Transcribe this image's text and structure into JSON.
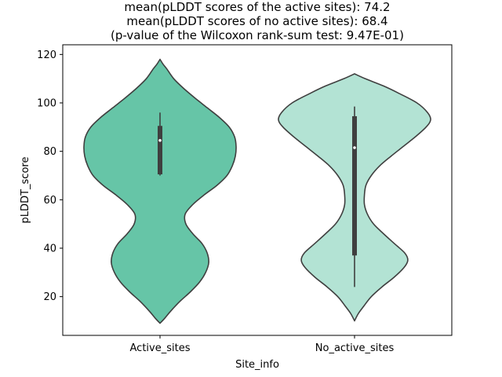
{
  "chart_data": {
    "type": "violin",
    "title_lines": [
      "mean(pLDDT scores of the active sites): 74.2",
      "mean(pLDDT scores of no active sites): 68.4",
      "(p-value of the Wilcoxon rank-sum test: 9.47E-01)"
    ],
    "xlabel": "Site_info",
    "ylabel": "pLDDT_score",
    "categories": [
      "Active_sites",
      "No_active_sites"
    ],
    "ylim": [
      4,
      124
    ],
    "yticks": [
      20,
      40,
      60,
      80,
      100,
      120
    ],
    "grid": false,
    "series": [
      {
        "category": "Active_sites",
        "color": "#66c5a7",
        "kde_min": 9,
        "kde_max": 118,
        "whisker_low": 70,
        "q1": 70.5,
        "median": 84.5,
        "q3": 90.5,
        "whisker_high": 96,
        "density_profile": [
          [
            9,
            0.0
          ],
          [
            11,
            0.06
          ],
          [
            14,
            0.14
          ],
          [
            18,
            0.26
          ],
          [
            22,
            0.4
          ],
          [
            26,
            0.52
          ],
          [
            30,
            0.6
          ],
          [
            34,
            0.64
          ],
          [
            38,
            0.62
          ],
          [
            42,
            0.55
          ],
          [
            46,
            0.43
          ],
          [
            50,
            0.34
          ],
          [
            54,
            0.33
          ],
          [
            58,
            0.43
          ],
          [
            62,
            0.58
          ],
          [
            66,
            0.75
          ],
          [
            70,
            0.88
          ],
          [
            74,
            0.95
          ],
          [
            78,
            0.99
          ],
          [
            82,
            1.0
          ],
          [
            86,
            0.98
          ],
          [
            90,
            0.91
          ],
          [
            94,
            0.78
          ],
          [
            98,
            0.62
          ],
          [
            102,
            0.46
          ],
          [
            106,
            0.31
          ],
          [
            110,
            0.18
          ],
          [
            114,
            0.09
          ],
          [
            116,
            0.04
          ],
          [
            118,
            0.0
          ]
        ]
      },
      {
        "category": "No_active_sites",
        "color": "#b3e3d4",
        "kde_min": 10,
        "kde_max": 112,
        "whisker_low": 24,
        "q1": 37,
        "median": 81.5,
        "q3": 94.5,
        "whisker_high": 98.5,
        "density_profile": [
          [
            10,
            0.0
          ],
          [
            13,
            0.05
          ],
          [
            16,
            0.12
          ],
          [
            20,
            0.22
          ],
          [
            24,
            0.36
          ],
          [
            28,
            0.52
          ],
          [
            32,
            0.65
          ],
          [
            35,
            0.7
          ],
          [
            38,
            0.66
          ],
          [
            42,
            0.52
          ],
          [
            46,
            0.38
          ],
          [
            50,
            0.25
          ],
          [
            54,
            0.17
          ],
          [
            58,
            0.13
          ],
          [
            62,
            0.13
          ],
          [
            66,
            0.15
          ],
          [
            70,
            0.22
          ],
          [
            74,
            0.33
          ],
          [
            78,
            0.48
          ],
          [
            82,
            0.64
          ],
          [
            86,
            0.8
          ],
          [
            90,
            0.94
          ],
          [
            93,
            1.0
          ],
          [
            96,
            0.96
          ],
          [
            100,
            0.82
          ],
          [
            104,
            0.58
          ],
          [
            107,
            0.38
          ],
          [
            110,
            0.14
          ],
          [
            112,
            0.0
          ]
        ]
      }
    ]
  }
}
